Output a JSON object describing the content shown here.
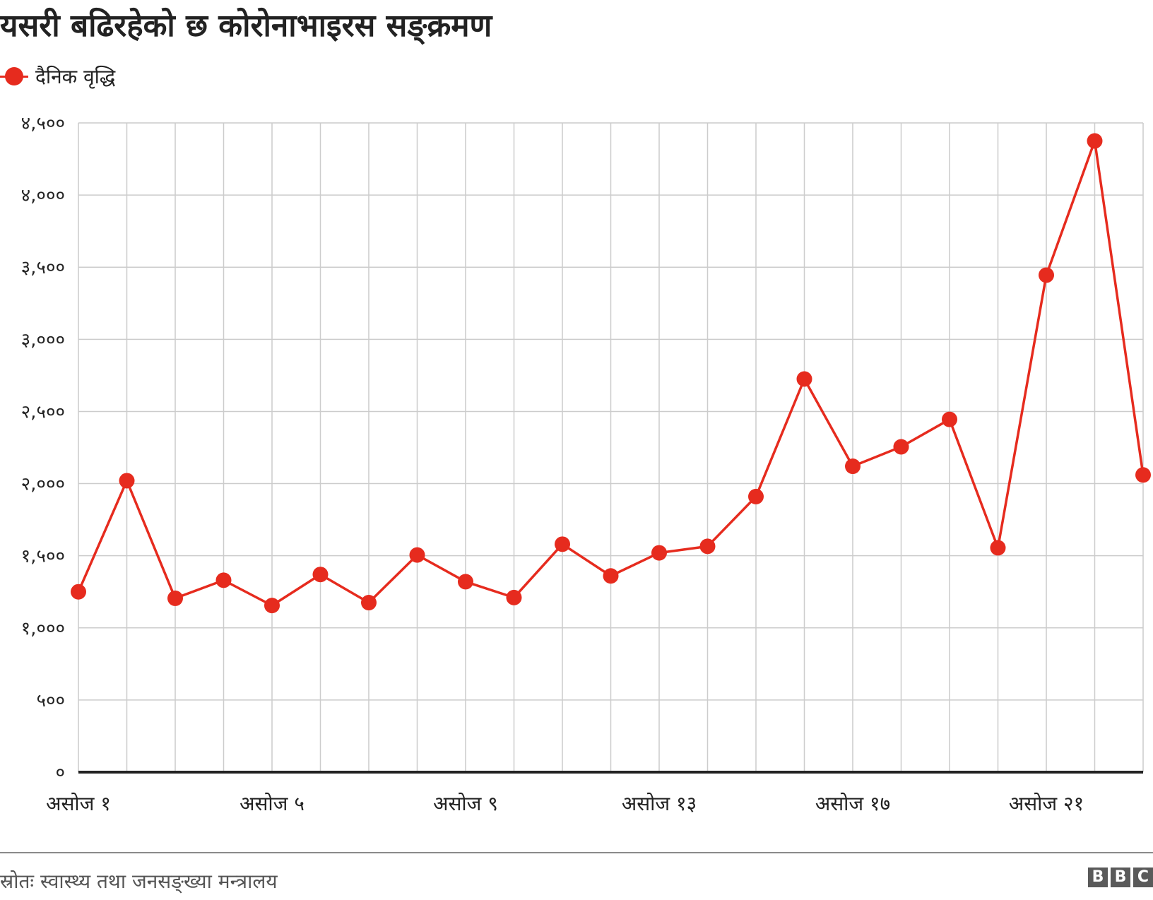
{
  "chart_data": {
    "type": "line",
    "title": "यसरी बढिरहेको छ कोरोनाभाइरस सङ्क्रमण",
    "legend": "top-left",
    "grid": true,
    "xlabel": "",
    "ylabel": "",
    "ylim": [
      0,
      4500
    ],
    "yticks": [
      {
        "value": 0,
        "label": "०"
      },
      {
        "value": 500,
        "label": "५००"
      },
      {
        "value": 1000,
        "label": "१,०००"
      },
      {
        "value": 1500,
        "label": "१,५००"
      },
      {
        "value": 2000,
        "label": "२,०००"
      },
      {
        "value": 2500,
        "label": "२,५००"
      },
      {
        "value": 3000,
        "label": "३,०००"
      },
      {
        "value": 3500,
        "label": "३,५००"
      },
      {
        "value": 4000,
        "label": "४,०००"
      },
      {
        "value": 4500,
        "label": "४,५००"
      }
    ],
    "categories": [
      "असोज १",
      "असोज २",
      "असोज ३",
      "असोज ४",
      "असोज ५",
      "असोज ६",
      "असोज ७",
      "असोज ८",
      "असोज ९",
      "असोज १०",
      "असोज ११",
      "असोज १२",
      "असोज १३",
      "असोज १४",
      "असोज १५",
      "असोज १६",
      "असोज १७",
      "असोज १८",
      "असोज १९",
      "असोज २०",
      "असोज २१",
      "असोज २२",
      "असोज २३"
    ],
    "x_tick_labels": [
      {
        "index": 0,
        "label": "असोज १"
      },
      {
        "index": 4,
        "label": "असोज ५"
      },
      {
        "index": 8,
        "label": "असोज ९"
      },
      {
        "index": 12,
        "label": "असोज १३"
      },
      {
        "index": 16,
        "label": "असोज १७"
      },
      {
        "index": 20,
        "label": "असोज २१"
      }
    ],
    "series": [
      {
        "name": "दैनिक वृद्धि",
        "color": "#e62b1e",
        "values": [
          1250,
          2020,
          1205,
          1330,
          1155,
          1370,
          1175,
          1505,
          1320,
          1210,
          1580,
          1360,
          1520,
          1565,
          1910,
          2725,
          2120,
          2255,
          2445,
          1555,
          3445,
          4375,
          2060
        ]
      }
    ]
  },
  "source": "स्रोतः स्वास्थ्य तथा जनसङ्ख्या मन्त्रालय",
  "logo": [
    "B",
    "B",
    "C"
  ]
}
